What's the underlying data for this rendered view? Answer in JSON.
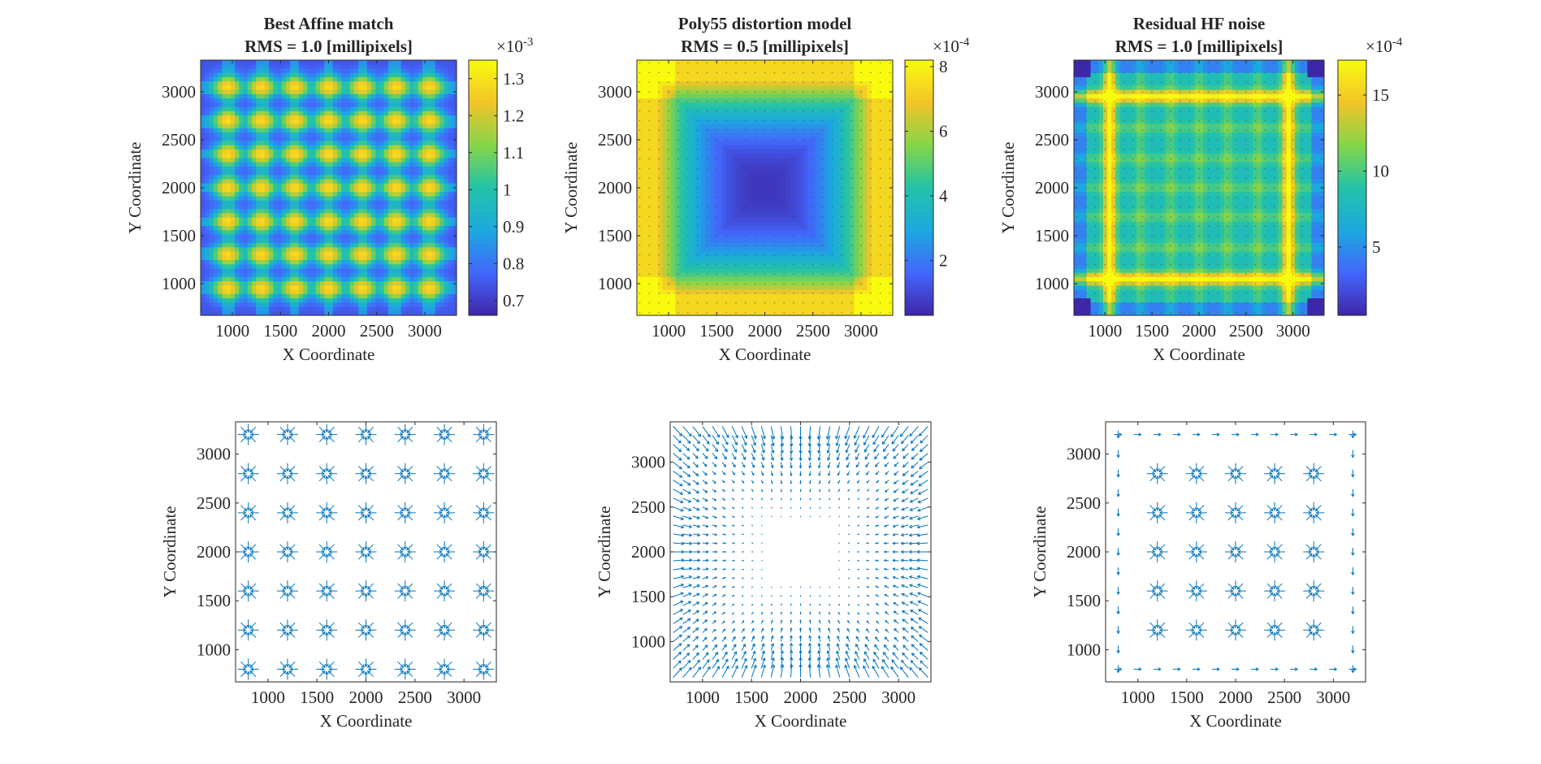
{
  "figure": {
    "description_free": true,
    "colormap": "parula",
    "colormap_stops": [
      "#3e26a8",
      "#4367fd",
      "#1ca9df",
      "#23c3a7",
      "#86d549",
      "#f2c428",
      "#f9fb0e"
    ],
    "arrow_color": "#0072bd"
  },
  "chart_data": [
    {
      "type": "heatmap",
      "id": "affine_map",
      "title": "Best Affine match",
      "subtitle": "RMS = 1.0 [millipixels]",
      "xlabel": "X Coordinate",
      "ylabel": "Y Coordinate",
      "xlim": [
        670,
        3330
      ],
      "ylim": [
        670,
        3330
      ],
      "xticks": [
        1000,
        1500,
        2000,
        2500,
        3000
      ],
      "yticks": [
        1000,
        1500,
        2000,
        2500,
        3000
      ],
      "xtick_labels": [
        "1000",
        "1500",
        "2000",
        "2500",
        "3000"
      ],
      "ytick_labels": [
        "1000",
        "1500",
        "2000",
        "2500",
        "3000"
      ],
      "pattern": "grid_blobs",
      "grid_points": [
        950,
        1300,
        1650,
        2000,
        2350,
        2700,
        3050
      ],
      "colorbar": {
        "lim": [
          0.66,
          1.35
        ],
        "ticks": [
          0.7,
          0.8,
          0.9,
          1.0,
          1.1,
          1.2,
          1.3
        ],
        "tick_labels": [
          "0.7",
          "0.8",
          "0.9",
          "1",
          "1.1",
          "1.2",
          "1.3"
        ],
        "exponent_base": "×10",
        "exponent_power": "-3"
      }
    },
    {
      "type": "heatmap",
      "id": "poly_map",
      "title": "Poly55 distortion model",
      "subtitle": "RMS = 0.5 [millipixels]",
      "xlabel": "X Coordinate",
      "ylabel": "Y Coordinate",
      "xlim": [
        670,
        3330
      ],
      "ylim": [
        670,
        3330
      ],
      "xticks": [
        1000,
        1500,
        2000,
        2500,
        3000
      ],
      "yticks": [
        1000,
        1500,
        2000,
        2500,
        3000
      ],
      "xtick_labels": [
        "1000",
        "1500",
        "2000",
        "2500",
        "3000"
      ],
      "ytick_labels": [
        "1000",
        "1500",
        "2000",
        "2500",
        "3000"
      ],
      "pattern": "center_low_ring",
      "grid_points": [
        950,
        1300,
        1650,
        2000,
        2350,
        2700,
        3050
      ],
      "colorbar": {
        "lim": [
          0.3,
          8.2
        ],
        "ticks": [
          2,
          4,
          6,
          8
        ],
        "tick_labels": [
          "2",
          "4",
          "6",
          "8"
        ],
        "exponent_base": "×10",
        "exponent_power": "-4"
      }
    },
    {
      "type": "heatmap",
      "id": "residual_map",
      "title": "Residual HF noise",
      "subtitle": "RMS = 1.0 [millipixels]",
      "xlabel": "X Coordinate",
      "ylabel": "Y Coordinate",
      "xlim": [
        670,
        3330
      ],
      "ylim": [
        670,
        3330
      ],
      "xticks": [
        1000,
        1500,
        2000,
        2500,
        3000
      ],
      "yticks": [
        1000,
        1500,
        2000,
        2500,
        3000
      ],
      "xtick_labels": [
        "1000",
        "1500",
        "2000",
        "2500",
        "3000"
      ],
      "ytick_labels": [
        "1000",
        "1500",
        "2000",
        "2500",
        "3000"
      ],
      "pattern": "grid_lines",
      "grid_points": [
        1050,
        1375,
        1700,
        2000,
        2300,
        2625,
        2950
      ],
      "colorbar": {
        "lim": [
          0.5,
          17.3
        ],
        "ticks": [
          5,
          10,
          15
        ],
        "tick_labels": [
          "5",
          "10",
          "15"
        ],
        "exponent_base": "×10",
        "exponent_power": "-4"
      }
    },
    {
      "type": "quiver",
      "id": "affine_quiver",
      "xlabel": "X Coordinate",
      "ylabel": "Y Coordinate",
      "xlim": [
        670,
        3330
      ],
      "ylim": [
        670,
        3330
      ],
      "xticks": [
        1000,
        1500,
        2000,
        2500,
        3000
      ],
      "yticks": [
        1000,
        1500,
        2000,
        2500,
        3000
      ],
      "xtick_labels": [
        "1000",
        "1500",
        "2000",
        "2500",
        "3000"
      ],
      "ytick_labels": [
        "1000",
        "1500",
        "2000",
        "2500",
        "3000"
      ],
      "pattern": "starbursts",
      "centers_x": [
        800,
        1200,
        1600,
        2000,
        2400,
        2800,
        3200
      ],
      "centers_y": [
        800,
        1200,
        1600,
        2000,
        2400,
        2800,
        3200
      ]
    },
    {
      "type": "quiver",
      "id": "poly_quiver",
      "xlabel": "X Coordinate",
      "ylabel": "Y Coordinate",
      "xlim": [
        670,
        3330
      ],
      "ylim": [
        550,
        3450
      ],
      "xticks": [
        1000,
        1500,
        2000,
        2500,
        3000
      ],
      "yticks": [
        1000,
        1500,
        2000,
        2500,
        3000
      ],
      "xtick_labels": [
        "1000",
        "1500",
        "2000",
        "2500",
        "3000"
      ],
      "ytick_labels": [
        "1000",
        "1500",
        "2000",
        "2500",
        "3000"
      ],
      "pattern": "radial_field",
      "grid_start": 700,
      "grid_step": 100
    },
    {
      "type": "quiver",
      "id": "residual_quiver",
      "xlabel": "X Coordinate",
      "ylabel": "Y Coordinate",
      "xlim": [
        670,
        3330
      ],
      "ylim": [
        670,
        3330
      ],
      "xticks": [
        1000,
        1500,
        2000,
        2500,
        3000
      ],
      "yticks": [
        1000,
        1500,
        2000,
        2500,
        3000
      ],
      "xtick_labels": [
        "1000",
        "1500",
        "2000",
        "2500",
        "3000"
      ],
      "ytick_labels": [
        "1000",
        "1500",
        "2000",
        "2500",
        "3000"
      ],
      "pattern": "starbursts_with_edges",
      "centers_x": [
        1200,
        1600,
        2000,
        2400,
        2800
      ],
      "centers_y": [
        1200,
        1600,
        2000,
        2400,
        2800
      ]
    }
  ]
}
